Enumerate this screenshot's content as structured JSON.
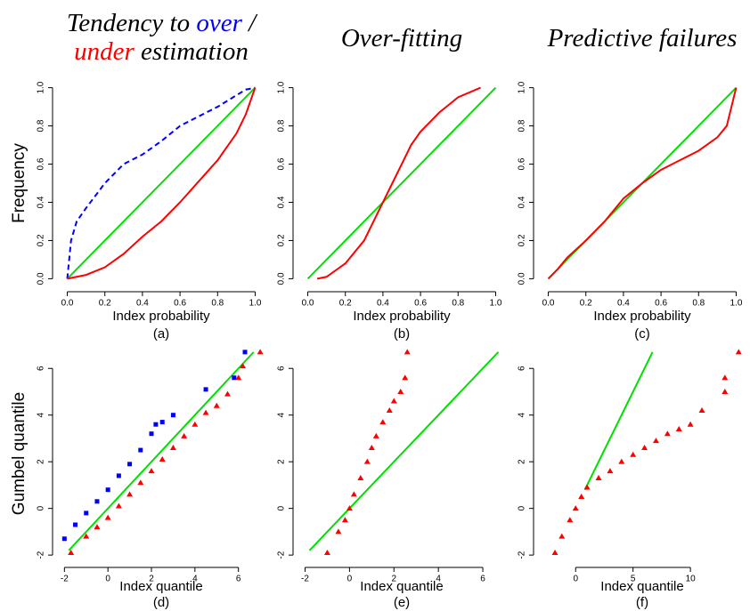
{
  "column_titles": [
    [
      [
        {
          "text": "Tendency to "
        },
        {
          "text": "over",
          "color": "#0000ff"
        },
        {
          "text": " /"
        }
      ],
      [
        {
          "text": "under",
          "color": "#ff0000"
        },
        {
          "text": " estimation"
        }
      ]
    ],
    [
      [
        {
          "text": "Over-fitting"
        }
      ]
    ],
    [
      [
        {
          "text": "Predictive failures"
        }
      ]
    ]
  ],
  "chart_data": [
    {
      "type": "line",
      "ylabel": "Frequency",
      "xlabel": "Index probability",
      "subtitle": "(a)",
      "xlim": [
        -0.05,
        1.05
      ],
      "ylim": [
        -0.04,
        1.04
      ],
      "xticks": [
        {
          "value": 0,
          "label": "0.0"
        },
        0.2,
        0.4,
        0.6,
        0.8,
        {
          "value": 1,
          "label": "1.0"
        }
      ],
      "yticks": [
        {
          "value": 0,
          "label": "0.0"
        },
        0.2,
        0.4,
        0.6,
        0.8,
        {
          "value": 1,
          "label": "1.0"
        }
      ],
      "series": [
        {
          "color": "#00e000",
          "x": [
            0,
            1
          ],
          "values": [
            0,
            1
          ]
        },
        {
          "color": "#0000ff",
          "line_style": "dashed",
          "x": [
            0,
            0.02,
            0.05,
            0.1,
            0.2,
            0.3,
            0.4,
            0.5,
            0.6,
            0.7,
            0.8,
            0.9,
            0.95,
            1
          ],
          "values": [
            0,
            0.2,
            0.3,
            0.37,
            0.5,
            0.6,
            0.65,
            0.72,
            0.8,
            0.85,
            0.9,
            0.96,
            0.99,
            1
          ]
        },
        {
          "color": "#ff0000",
          "x": [
            0,
            0.05,
            0.1,
            0.2,
            0.3,
            0.4,
            0.5,
            0.6,
            0.7,
            0.8,
            0.9,
            0.95,
            1
          ],
          "values": [
            0,
            0.01,
            0.02,
            0.06,
            0.13,
            0.22,
            0.3,
            0.4,
            0.51,
            0.62,
            0.76,
            0.86,
            1
          ]
        }
      ]
    },
    {
      "type": "line",
      "xlabel": "Index probability",
      "subtitle": "(b)",
      "xlim": [
        -0.05,
        1.05
      ],
      "ylim": [
        -0.04,
        1.04
      ],
      "xticks": [
        {
          "value": 0,
          "label": "0.0"
        },
        0.2,
        0.4,
        0.6,
        0.8,
        {
          "value": 1,
          "label": "1.0"
        }
      ],
      "yticks": [
        {
          "value": 0,
          "label": "0.0"
        },
        0.2,
        0.4,
        0.6,
        0.8,
        {
          "value": 1,
          "label": "1.0"
        }
      ],
      "series": [
        {
          "color": "#00e000",
          "x": [
            0,
            1
          ],
          "values": [
            0,
            1
          ]
        },
        {
          "color": "#ff0000",
          "x": [
            0.05,
            0.1,
            0.2,
            0.3,
            0.35,
            0.4,
            0.45,
            0.5,
            0.55,
            0.6,
            0.7,
            0.8,
            0.92
          ],
          "values": [
            0,
            0.01,
            0.08,
            0.2,
            0.3,
            0.4,
            0.5,
            0.6,
            0.7,
            0.77,
            0.87,
            0.95,
            1
          ]
        }
      ]
    },
    {
      "type": "line",
      "xlabel": "Index probability",
      "subtitle": "(c)",
      "xlim": [
        -0.05,
        1.05
      ],
      "ylim": [
        -0.04,
        1.04
      ],
      "xticks": [
        {
          "value": 0,
          "label": "0.0"
        },
        0.2,
        0.4,
        0.6,
        0.8,
        {
          "value": 1,
          "label": "1.0"
        }
      ],
      "yticks": [
        {
          "value": 0,
          "label": "0.0"
        },
        0.2,
        0.4,
        0.6,
        0.8,
        {
          "value": 1,
          "label": "1.0"
        }
      ],
      "series": [
        {
          "color": "#00e000",
          "x": [
            0,
            1
          ],
          "values": [
            0,
            1
          ]
        },
        {
          "color": "#ff0000",
          "x": [
            0,
            0.05,
            0.1,
            0.2,
            0.3,
            0.4,
            0.5,
            0.6,
            0.7,
            0.8,
            0.9,
            0.95,
            1
          ],
          "values": [
            0,
            0.05,
            0.11,
            0.2,
            0.3,
            0.42,
            0.5,
            0.57,
            0.62,
            0.67,
            0.74,
            0.8,
            1
          ]
        }
      ]
    },
    {
      "type": "scatter",
      "ylabel": "Gumbel quantile",
      "xlabel": "Index quantile",
      "subtitle": "(d)",
      "xlim": [
        -2.3,
        7.2
      ],
      "ylim": [
        -2.3,
        7.0
      ],
      "xticks": [
        -2,
        0,
        2,
        4,
        6
      ],
      "yticks": [
        -2,
        0,
        2,
        4,
        6
      ],
      "series": [
        {
          "color": "#00e000",
          "x": [
            -1.8,
            6.7
          ],
          "values": [
            -1.8,
            6.7
          ]
        },
        {
          "color": "#0000ff",
          "marker": "square",
          "x": [
            -2,
            -1.5,
            -1,
            -0.5,
            0,
            0.5,
            1,
            1.5,
            2,
            2.2,
            2.5,
            3,
            4.5,
            5.8,
            6.3
          ],
          "values": [
            -1.3,
            -0.7,
            -0.2,
            0.3,
            0.8,
            1.4,
            1.9,
            2.5,
            3.2,
            3.6,
            3.7,
            4.0,
            5.1,
            5.6,
            6.7
          ]
        },
        {
          "color": "#ff0000",
          "marker": "triangle",
          "x": [
            -1.7,
            -1,
            -0.5,
            0,
            0.5,
            1,
            1.5,
            2,
            2.5,
            3,
            3.5,
            4,
            4.5,
            5,
            5.5,
            6,
            6.2,
            7
          ],
          "values": [
            -1.9,
            -1.2,
            -0.8,
            -0.4,
            0.1,
            0.6,
            1.1,
            1.6,
            2.1,
            2.6,
            3.1,
            3.6,
            4.1,
            4.4,
            4.9,
            5.6,
            6.1,
            6.7
          ]
        }
      ]
    },
    {
      "type": "scatter",
      "xlabel": "Index quantile",
      "subtitle": "(e)",
      "xlim": [
        -2.3,
        7.0
      ],
      "ylim": [
        -2.3,
        7.0
      ],
      "xticks": [
        -2,
        0,
        2,
        4,
        6
      ],
      "yticks": [
        -2,
        0,
        2,
        4,
        6
      ],
      "series": [
        {
          "color": "#00e000",
          "x": [
            -1.8,
            6.7
          ],
          "values": [
            -1.8,
            6.7
          ]
        },
        {
          "color": "#ff0000",
          "marker": "triangle",
          "x": [
            -1,
            -0.5,
            -0.2,
            0,
            0.2,
            0.5,
            0.8,
            1,
            1.2,
            1.5,
            1.8,
            2,
            2.3,
            2.5,
            2.6
          ],
          "values": [
            -1.9,
            -1,
            -0.5,
            0,
            0.6,
            1.3,
            2,
            2.6,
            3.1,
            3.7,
            4.2,
            4.6,
            5.0,
            5.6,
            6.7
          ]
        }
      ]
    },
    {
      "type": "scatter",
      "xlabel": "Index quantile",
      "subtitle": "(f)",
      "xlim": [
        -3.2,
        14.8
      ],
      "ylim": [
        -2.3,
        7.0
      ],
      "xticks": [
        0,
        5,
        10
      ],
      "yticks": [
        -2,
        0,
        2,
        4,
        6
      ],
      "series": [
        {
          "color": "#00e000",
          "x": [
            0.8,
            6.7
          ],
          "values": [
            0.8,
            6.7
          ]
        },
        {
          "color": "#ff0000",
          "marker": "triangle",
          "x": [
            -1.8,
            -1.2,
            -0.5,
            0,
            0.5,
            1,
            2,
            3,
            4,
            5,
            6,
            7,
            8,
            9,
            10,
            11,
            13,
            13,
            14.2
          ],
          "values": [
            -1.9,
            -1.2,
            -0.5,
            0,
            0.5,
            0.9,
            1.3,
            1.6,
            2,
            2.3,
            2.6,
            2.9,
            3.2,
            3.4,
            3.6,
            4.2,
            5.0,
            5.6,
            6.7
          ]
        }
      ]
    }
  ]
}
